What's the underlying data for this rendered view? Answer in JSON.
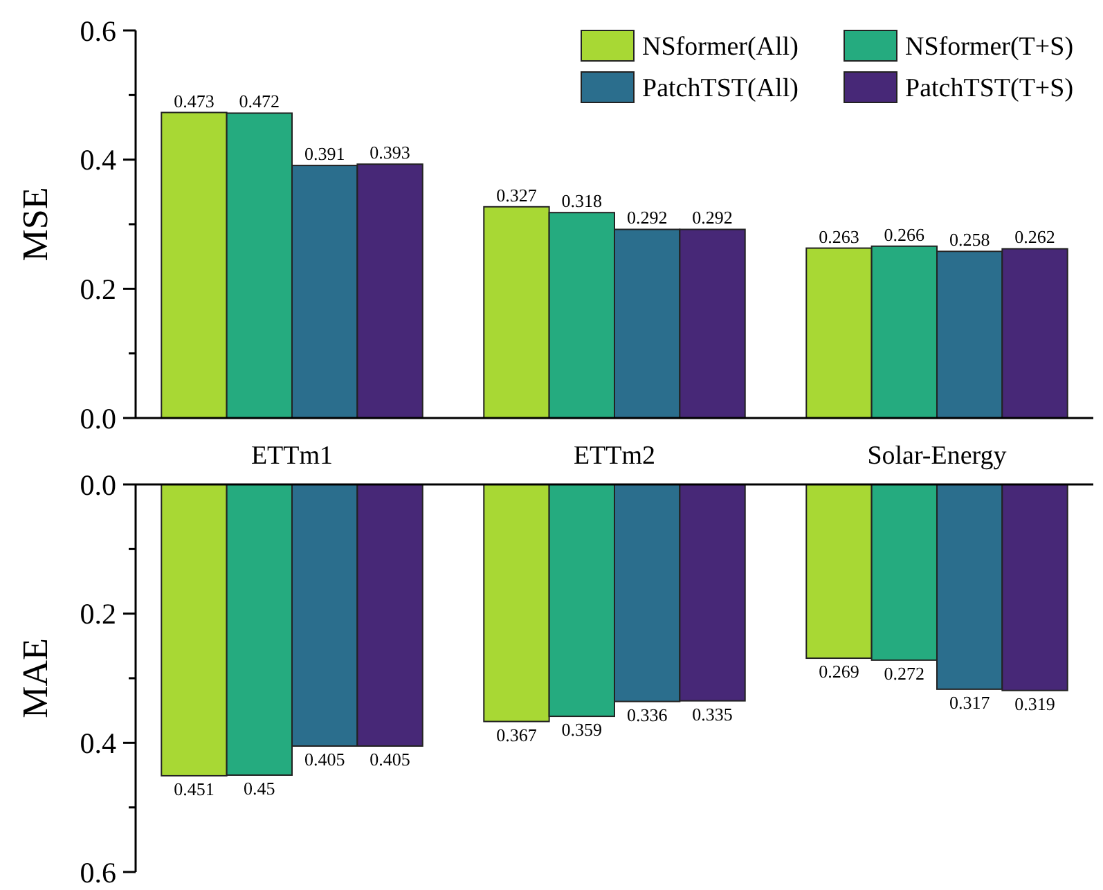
{
  "chart_data": [
    {
      "type": "bar",
      "ylabel": "MSE",
      "categories": [
        "ETTm1",
        "ETTm2",
        "Solar-Energy"
      ],
      "series": [
        {
          "name": "NSformer(All)",
          "color": "#a8d834",
          "values": [
            0.473,
            0.327,
            0.263
          ]
        },
        {
          "name": "NSformer(T+S)",
          "color": "#25ab7f",
          "values": [
            0.472,
            0.318,
            0.266
          ]
        },
        {
          "name": "PatchTST(All)",
          "color": "#2b6e8d",
          "values": [
            0.391,
            0.292,
            0.258
          ]
        },
        {
          "name": "PatchTST(T+S)",
          "color": "#472877",
          "values": [
            0.393,
            0.292,
            0.262
          ]
        }
      ],
      "ylim": [
        0,
        0.6
      ],
      "yticks": [
        {
          "value": 0,
          "label": "0.0"
        },
        {
          "value": 0.1,
          "label": null
        },
        {
          "value": 0.2,
          "label": "0.2"
        },
        {
          "value": 0.3,
          "label": null
        },
        {
          "value": 0.4,
          "label": "0.4"
        },
        {
          "value": 0.5,
          "label": null
        },
        {
          "value": 0.6,
          "label": "0.6"
        }
      ],
      "data_labels": true,
      "legend": "top right"
    },
    {
      "type": "bar",
      "ylabel": "MAE",
      "categories": [
        null,
        null,
        null
      ],
      "series": [
        {
          "color": "#a8d834",
          "values": [
            0.451,
            0.367,
            0.269
          ]
        },
        {
          "color": "#25ab7f",
          "values": [
            0.45,
            0.359,
            0.272
          ]
        },
        {
          "color": "#2b6e8d",
          "values": [
            0.405,
            0.336,
            0.317
          ]
        },
        {
          "color": "#472877",
          "values": [
            0.405,
            0.335,
            0.319
          ]
        }
      ],
      "ylim": [
        0.6,
        0
      ],
      "yticks": [
        {
          "value": 0,
          "label": "0.0"
        },
        {
          "value": 0.1,
          "label": null
        },
        {
          "value": 0.2,
          "label": "0.2"
        },
        {
          "value": 0.3,
          "label": null
        },
        {
          "value": 0.4,
          "label": "0.4"
        },
        {
          "value": 0.5,
          "label": null
        },
        {
          "value": 0.6,
          "label": "0.6"
        }
      ],
      "data_labels": true,
      "tick_labels": "y"
    }
  ]
}
